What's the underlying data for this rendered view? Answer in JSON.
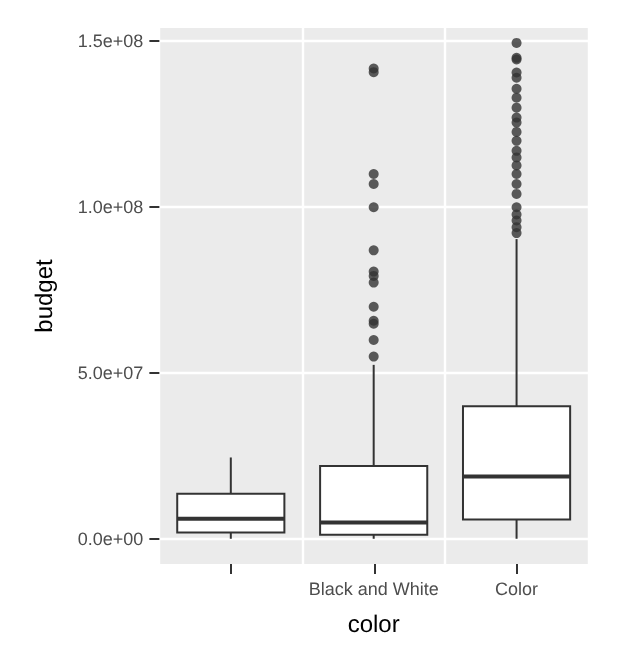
{
  "chart_data": {
    "type": "box",
    "xlabel": "color",
    "ylabel": "budget",
    "categories": [
      null,
      "Black and White",
      "Color"
    ],
    "boxes": [
      {
        "low": 100000,
        "q1": 2000000,
        "median": 6100000,
        "q3": 13700000,
        "high": 24600000
      },
      {
        "low": 100000,
        "q1": 1300000,
        "median": 5000000,
        "q3": 22000000,
        "high": 52500000,
        "outliers": [
          141800000,
          140700000,
          110000000,
          107000000,
          100000000,
          87000000,
          80600000,
          79300000,
          77300000,
          70000000,
          65800000,
          64900000,
          60000000,
          55000000
        ]
      },
      {
        "low": 100000,
        "q1": 5900000,
        "median": 18900000,
        "q3": 40000000,
        "high": 90400000,
        "outliers": [
          149500000,
          145000000,
          144500000,
          140600000,
          139000000,
          135700000,
          133000000,
          130000000,
          127000000,
          125500000,
          122700000,
          120000000,
          117000000,
          115000000,
          112600000,
          110000000,
          107000000,
          104000000,
          100000000,
          97800000,
          96000000,
          94000000,
          92200000
        ]
      }
    ],
    "ylim": [
      -7500000,
      154000000
    ],
    "yticks": [
      {
        "value": 0,
        "label": "0.0e+00"
      },
      {
        "value": 50000000,
        "label": "5.0e+07"
      },
      {
        "value": 100000000,
        "label": "1.0e+08"
      },
      {
        "value": 150000000,
        "label": "1.5e+08"
      }
    ],
    "grid": true
  }
}
